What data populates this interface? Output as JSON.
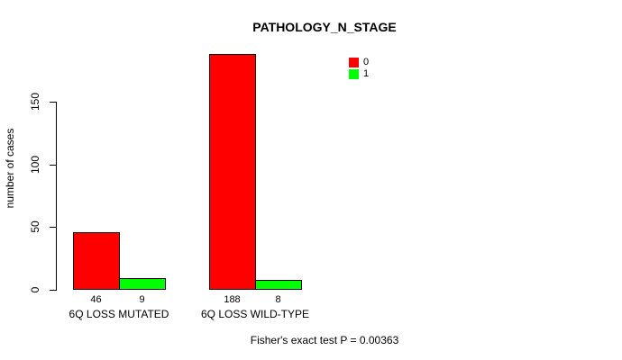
{
  "chart_data": {
    "type": "bar",
    "title": "PATHOLOGY_N_STAGE",
    "ylabel": "number of cases",
    "xlabel": "",
    "categories": [
      "6Q LOSS MUTATED",
      "6Q LOSS WILD-TYPE"
    ],
    "series": [
      {
        "name": "0",
        "color": "#FF0000",
        "values": [
          46,
          188
        ]
      },
      {
        "name": "1",
        "color": "#00FF00",
        "values": [
          9,
          8
        ]
      }
    ],
    "yticks": [
      0,
      50,
      100,
      150
    ],
    "ylim": [
      0,
      195
    ],
    "grid": false,
    "legend_position": "top-right",
    "bar_border_color": "#000000",
    "footer": "Fisher's exact test P = 0.00363"
  },
  "colors": {
    "background": "#FFFFFF",
    "axis": "#000000",
    "text": "#000000"
  }
}
